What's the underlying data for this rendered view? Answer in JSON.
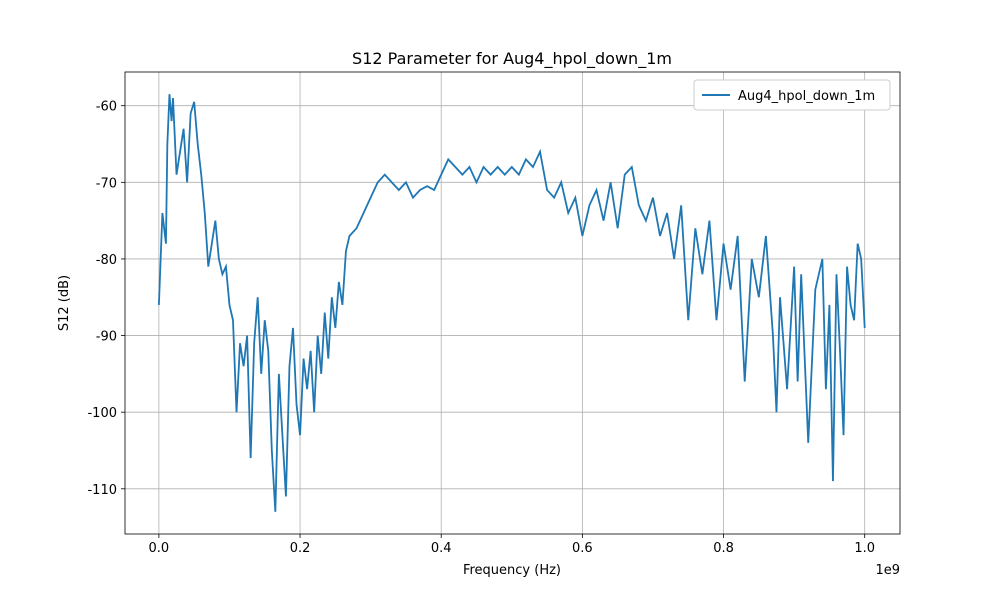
{
  "chart_data": {
    "type": "line",
    "title": "S12 Parameter for Aug4_hpol_down_1m",
    "x_label": "Frequency (Hz)",
    "y_label": "S12 (dB)",
    "x_offset_label": "1e9",
    "xlim": [
      -0.048,
      1.05
    ],
    "ylim": [
      -115.9,
      -55.6
    ],
    "xticks": [
      {
        "value": 0,
        "label": "0.0"
      },
      0.2,
      0.4,
      0.6,
      0.8,
      {
        "value": 1,
        "label": "1.0"
      }
    ],
    "yticks": [
      -110,
      -100,
      -90,
      -80,
      -70,
      -60
    ],
    "grid": true,
    "legend": "upper right",
    "x": [
      0,
      0.005,
      0.01,
      0.012,
      0.015,
      0.018,
      0.02,
      0.025,
      0.03,
      0.035,
      0.04,
      0.045,
      0.05,
      0.055,
      0.06,
      0.065,
      0.07,
      0.075,
      0.08,
      0.085,
      0.09,
      0.095,
      0.1,
      0.105,
      0.11,
      0.115,
      0.12,
      0.125,
      0.13,
      0.135,
      0.14,
      0.145,
      0.15,
      0.155,
      0.16,
      0.165,
      0.17,
      0.175,
      0.18,
      0.185,
      0.19,
      0.195,
      0.2,
      0.205,
      0.21,
      0.215,
      0.22,
      0.225,
      0.23,
      0.235,
      0.24,
      0.245,
      0.25,
      0.255,
      0.26,
      0.265,
      0.27,
      0.28,
      0.29,
      0.3,
      0.31,
      0.32,
      0.33,
      0.34,
      0.35,
      0.36,
      0.37,
      0.38,
      0.39,
      0.4,
      0.41,
      0.42,
      0.43,
      0.44,
      0.45,
      0.46,
      0.47,
      0.48,
      0.49,
      0.5,
      0.51,
      0.52,
      0.53,
      0.54,
      0.55,
      0.56,
      0.57,
      0.58,
      0.59,
      0.6,
      0.61,
      0.62,
      0.63,
      0.64,
      0.65,
      0.66,
      0.67,
      0.68,
      0.69,
      0.7,
      0.71,
      0.72,
      0.73,
      0.74,
      0.75,
      0.76,
      0.77,
      0.78,
      0.79,
      0.8,
      0.81,
      0.82,
      0.83,
      0.84,
      0.85,
      0.86,
      0.87,
      0.875,
      0.88,
      0.89,
      0.9,
      0.905,
      0.91,
      0.92,
      0.93,
      0.94,
      0.945,
      0.95,
      0.955,
      0.96,
      0.965,
      0.97,
      0.975,
      0.98,
      0.985,
      0.99,
      0.995,
      1
    ],
    "series": [
      {
        "name": "Aug4_hpol_down_1m",
        "color": "#1f77b4",
        "values": [
          -86,
          -74,
          -78,
          -65,
          -58.5,
          -62,
          -59,
          -69,
          -66,
          -63,
          -70,
          -61,
          -59.5,
          -65,
          -69,
          -74,
          -81,
          -78,
          -75,
          -80,
          -82,
          -81,
          -86,
          -88,
          -100,
          -91,
          -94,
          -90,
          -106,
          -91,
          -85,
          -95,
          -88,
          -92,
          -105,
          -113,
          -95,
          -103,
          -111,
          -94,
          -89,
          -99,
          -103,
          -93,
          -97,
          -92,
          -100,
          -90,
          -95,
          -87,
          -93,
          -85,
          -89,
          -83,
          -86,
          -79,
          -77,
          -76,
          -74,
          -72,
          -70,
          -69,
          -70,
          -71,
          -70,
          -72,
          -71,
          -70.5,
          -71,
          -69,
          -67,
          -68,
          -69,
          -68,
          -70,
          -68,
          -69,
          -68,
          -69,
          -68,
          -69,
          -67,
          -68,
          -66,
          -71,
          -72,
          -70,
          -74,
          -72,
          -77,
          -73,
          -71,
          -75,
          -70,
          -76,
          -69,
          -68,
          -73,
          -75,
          -72,
          -77,
          -74,
          -80,
          -73,
          -88,
          -76,
          -82,
          -75,
          -88,
          -78,
          -84,
          -77,
          -96,
          -80,
          -85,
          -77,
          -90,
          -100,
          -85,
          -97,
          -81,
          -96,
          -82,
          -104,
          -84,
          -80,
          -97,
          -86,
          -109,
          -82,
          -92,
          -103,
          -81,
          -86,
          -88,
          -78,
          -80,
          -89
        ]
      }
    ]
  }
}
